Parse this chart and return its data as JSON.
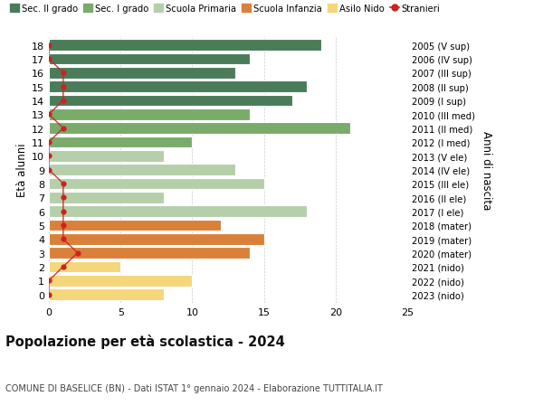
{
  "ages": [
    18,
    17,
    16,
    15,
    14,
    13,
    12,
    11,
    10,
    9,
    8,
    7,
    6,
    5,
    4,
    3,
    2,
    1,
    0
  ],
  "values": [
    19,
    14,
    13,
    18,
    17,
    14,
    21,
    10,
    8,
    13,
    15,
    8,
    18,
    12,
    15,
    14,
    5,
    10,
    8
  ],
  "right_labels": [
    "2005 (V sup)",
    "2006 (IV sup)",
    "2007 (III sup)",
    "2008 (II sup)",
    "2009 (I sup)",
    "2010 (III med)",
    "2011 (II med)",
    "2012 (I med)",
    "2013 (V ele)",
    "2014 (IV ele)",
    "2015 (III ele)",
    "2016 (II ele)",
    "2017 (I ele)",
    "2018 (mater)",
    "2019 (mater)",
    "2020 (mater)",
    "2021 (nido)",
    "2022 (nido)",
    "2023 (nido)"
  ],
  "bar_colors": [
    "#4a7c59",
    "#4a7c59",
    "#4a7c59",
    "#4a7c59",
    "#4a7c59",
    "#7aab6b",
    "#7aab6b",
    "#7aab6b",
    "#b5cfaa",
    "#b5cfaa",
    "#b5cfaa",
    "#b5cfaa",
    "#b5cfaa",
    "#d9813a",
    "#d9813a",
    "#d9813a",
    "#f5d67a",
    "#f5d67a",
    "#f5d67a"
  ],
  "legend_items": [
    {
      "label": "Sec. II grado",
      "color": "#4a7c59"
    },
    {
      "label": "Sec. I grado",
      "color": "#7aab6b"
    },
    {
      "label": "Scuola Primaria",
      "color": "#b5cfaa"
    },
    {
      "label": "Scuola Infanzia",
      "color": "#d9813a"
    },
    {
      "label": "Asilo Nido",
      "color": "#f5d67a"
    },
    {
      "label": "Stranieri",
      "color": "#cc2222"
    }
  ],
  "title": "Popolazione per età scolastica - 2024",
  "subtitle": "COMUNE DI BASELICE (BN) - Dati ISTAT 1° gennaio 2024 - Elaborazione TUTTITALIA.IT",
  "ylabel": "Età alunni",
  "right_ylabel": "Anni di nascita",
  "xlim": [
    0,
    25
  ],
  "background_color": "#ffffff",
  "bar_height": 0.82,
  "stranieri_x": [
    0,
    0,
    1,
    1,
    1,
    0,
    1,
    0,
    0,
    0,
    1,
    1,
    1,
    1,
    1,
    2,
    1,
    0,
    0
  ]
}
